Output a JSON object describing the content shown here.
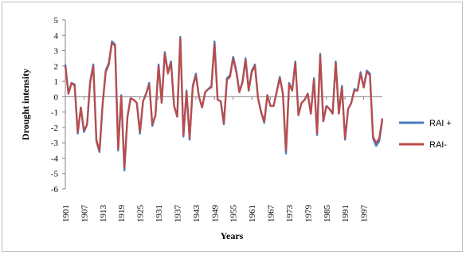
{
  "chart_data": {
    "type": "line",
    "title": "",
    "xlabel": "Years",
    "ylabel": "Drought intensity",
    "ylim": [
      -6,
      5
    ],
    "yticks": [
      5,
      4,
      3,
      2,
      1,
      0,
      -1,
      -2,
      -3,
      -4,
      -5,
      -6
    ],
    "x_tick_labels": [
      "1901",
      "1907",
      "1913",
      "1919",
      "1925",
      "1931",
      "1937",
      "1943",
      "1949",
      "1955",
      "1961",
      "1967",
      "1973",
      "1979",
      "1985",
      "1991",
      "1997"
    ],
    "grid": false,
    "legend_position": "right",
    "x": [
      1901,
      1902,
      1903,
      1904,
      1905,
      1906,
      1907,
      1908,
      1909,
      1910,
      1911,
      1912,
      1913,
      1914,
      1915,
      1916,
      1917,
      1918,
      1919,
      1920,
      1921,
      1922,
      1923,
      1924,
      1925,
      1926,
      1927,
      1928,
      1929,
      1930,
      1931,
      1932,
      1933,
      1934,
      1935,
      1936,
      1937,
      1938,
      1939,
      1940,
      1941,
      1942,
      1943,
      1944,
      1945,
      1946,
      1947,
      1948,
      1949,
      1950,
      1951,
      1952,
      1953,
      1954,
      1955,
      1956,
      1957,
      1958,
      1959,
      1960,
      1961,
      1962,
      1963,
      1964,
      1965,
      1966,
      1967,
      1968,
      1969,
      1970,
      1971,
      1972,
      1973,
      1974,
      1975,
      1976,
      1977,
      1978,
      1979,
      1980,
      1981,
      1982,
      1983,
      1984,
      1985,
      1986,
      1987,
      1988,
      1989,
      1990,
      1991,
      1992,
      1993,
      1994,
      1995,
      1996,
      1997,
      1998,
      1999,
      2000,
      2001,
      2002,
      2003
    ],
    "series": [
      {
        "name": "RAI +",
        "color": "#4a7ebb",
        "values": [
          2.1,
          0.2,
          0.9,
          0.8,
          -2.4,
          -0.7,
          -2.3,
          -1.8,
          1.0,
          2.1,
          -2.9,
          -3.6,
          -0.5,
          1.7,
          2.2,
          3.6,
          3.4,
          -3.5,
          0.1,
          -4.8,
          -1.3,
          -0.1,
          -0.2,
          -0.4,
          -2.4,
          -0.3,
          0.2,
          0.9,
          -1.9,
          -1.2,
          2.1,
          -0.4,
          2.9,
          1.6,
          2.3,
          -0.6,
          -1.3,
          3.9,
          -2.6,
          0.4,
          -2.8,
          0.7,
          1.5,
          0.0,
          -0.7,
          0.3,
          0.5,
          0.7,
          3.6,
          -0.2,
          -0.3,
          -1.8,
          1.2,
          1.4,
          2.6,
          1.7,
          0.3,
          1.0,
          2.5,
          0.4,
          1.7,
          2.1,
          -0.1,
          -1.0,
          -1.7,
          0.1,
          -0.6,
          -0.6,
          0.3,
          1.3,
          0.2,
          -3.7,
          0.9,
          0.4,
          2.3,
          -1.2,
          -0.4,
          -0.2,
          0.2,
          -1.1,
          1.2,
          -2.5,
          2.8,
          -1.6,
          -0.6,
          -0.8,
          -1.1,
          2.3,
          -1.1,
          0.7,
          -2.8,
          -0.8,
          -0.4,
          0.5,
          0.4,
          1.6,
          0.6,
          1.7,
          1.5,
          -2.7,
          -3.2,
          -2.9,
          -1.5
        ]
      },
      {
        "name": "RAI-",
        "color": "#be4b48",
        "values": [
          2.0,
          0.2,
          0.9,
          0.7,
          -2.3,
          -0.7,
          -2.2,
          -1.8,
          0.9,
          2.0,
          -2.8,
          -3.5,
          -0.5,
          1.6,
          2.1,
          3.5,
          3.3,
          -3.4,
          0.0,
          -4.6,
          -1.3,
          -0.1,
          -0.2,
          -0.4,
          -2.3,
          -0.3,
          0.2,
          0.8,
          -1.8,
          -1.2,
          2.0,
          -0.4,
          2.8,
          1.5,
          2.2,
          -0.6,
          -1.3,
          3.8,
          -2.5,
          0.3,
          -2.7,
          0.6,
          1.4,
          0.0,
          -0.7,
          0.3,
          0.5,
          0.6,
          3.4,
          -0.2,
          -0.3,
          -1.7,
          1.1,
          1.3,
          2.5,
          1.6,
          0.3,
          0.9,
          2.4,
          0.4,
          1.6,
          2.0,
          -0.1,
          -1.0,
          -1.6,
          0.1,
          -0.6,
          -0.6,
          0.3,
          1.2,
          0.2,
          -3.5,
          0.8,
          0.4,
          2.2,
          -1.2,
          -0.4,
          -0.2,
          0.2,
          -1.1,
          1.1,
          -2.4,
          2.7,
          -1.6,
          -0.6,
          -0.8,
          -1.1,
          2.2,
          -1.1,
          0.6,
          -2.7,
          -0.8,
          -0.4,
          0.4,
          0.4,
          1.5,
          0.6,
          1.6,
          1.4,
          -2.6,
          -3.0,
          -2.7,
          -1.4
        ]
      }
    ]
  }
}
